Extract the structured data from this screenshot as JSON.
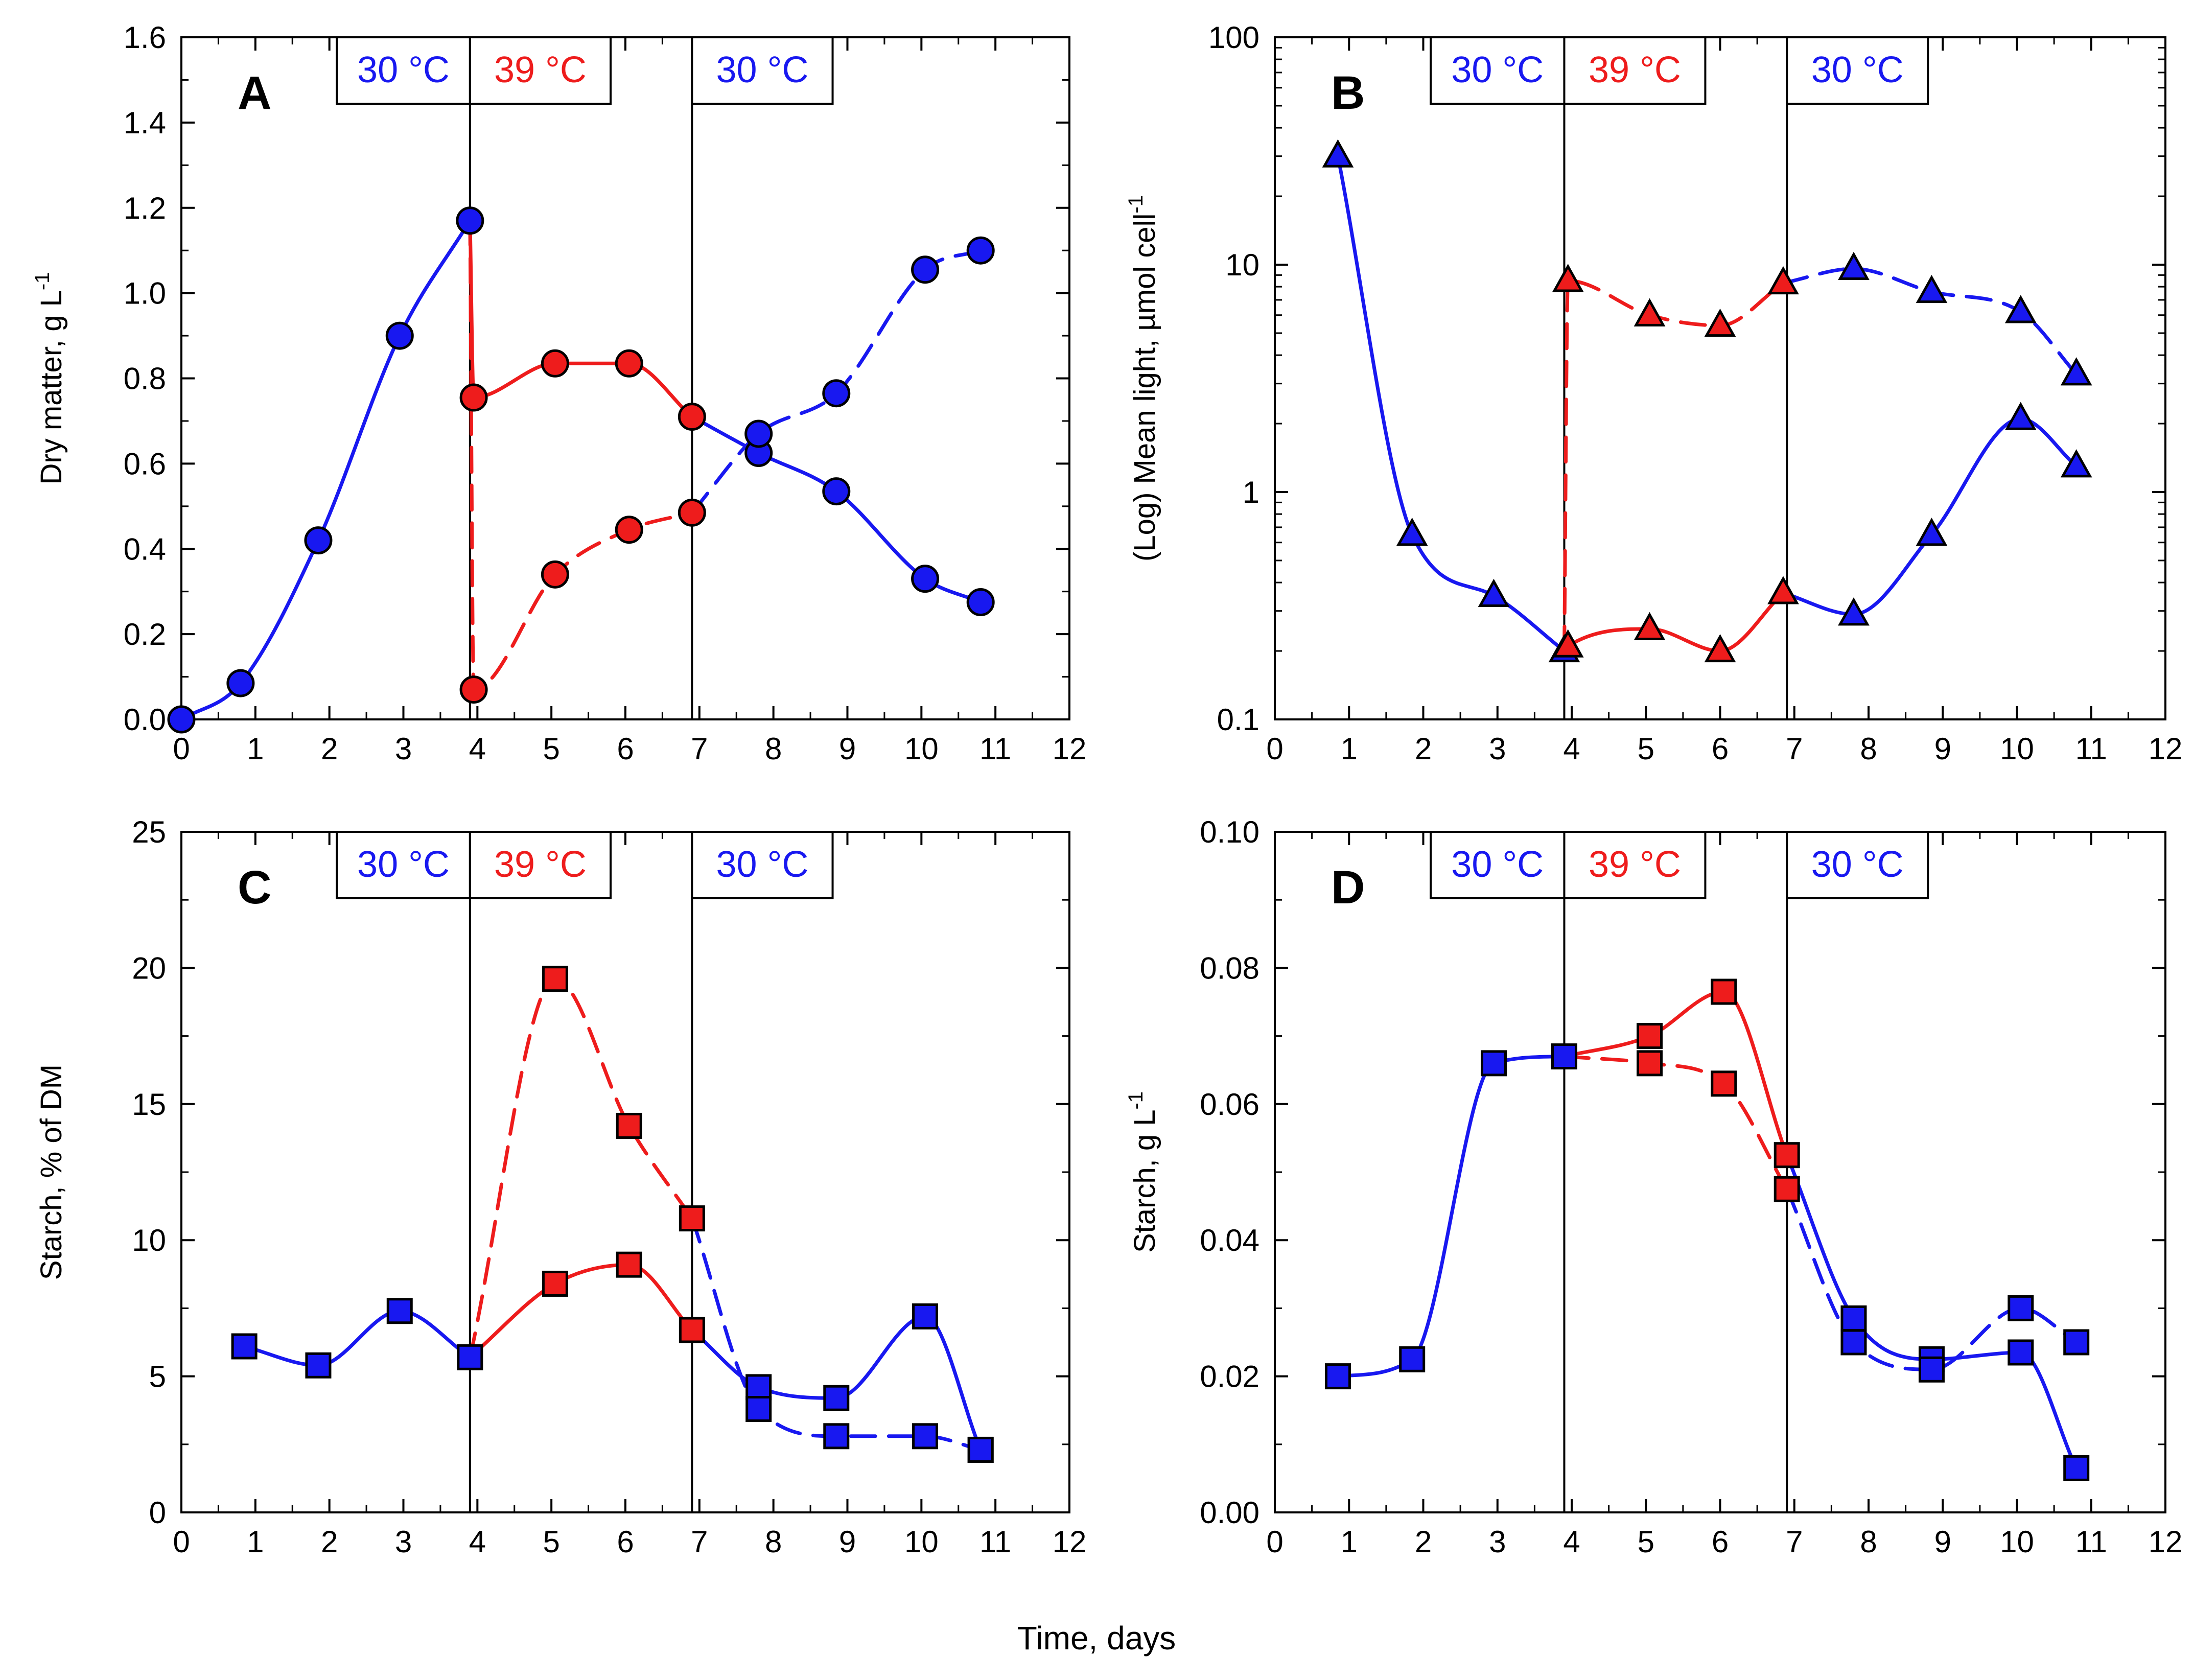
{
  "figure": {
    "xlabel": "Time, days"
  },
  "colors": {
    "blue": "#1818f0",
    "red": "#ee1c1c",
    "axis": "#000000",
    "bg": "#ffffff"
  },
  "chart_data": [
    {
      "id": "A",
      "type": "line",
      "panel_label": "A",
      "ylabel": "Dry matter, g L",
      "ylabel_sup": "-1",
      "xlim": [
        0,
        12
      ],
      "ylim": [
        0,
        1.6
      ],
      "yscale": "linear",
      "xticks": [
        0,
        1,
        2,
        3,
        4,
        5,
        6,
        7,
        8,
        9,
        10,
        11,
        12
      ],
      "xtick_labels": [
        "0",
        "1",
        "2",
        "3",
        "4",
        "5",
        "6",
        "7",
        "8",
        "9",
        "10",
        "11",
        "12"
      ],
      "yticks": [
        0,
        0.2,
        0.4,
        0.6,
        0.8,
        1.0,
        1.2,
        1.4,
        1.6
      ],
      "ytick_labels": [
        "0.0",
        "0.2",
        "0.4",
        "0.6",
        "0.8",
        "1.0",
        "1.2",
        "1.4",
        "1.6"
      ],
      "vlines": [
        3.9,
        6.9
      ],
      "temp_labels": [
        {
          "text": "30 °C",
          "color": "blue",
          "x0": 2.1,
          "x1": 3.9
        },
        {
          "text": "39 °C",
          "color": "red",
          "x0": 3.9,
          "x1": 5.8
        },
        {
          "text": "30 °C",
          "color": "blue",
          "x0": 6.9,
          "x1": 8.8
        }
      ],
      "series": [
        {
          "color": "blue",
          "dash": false,
          "marker": "circle",
          "x": [
            0,
            0.8,
            1.85,
            2.95,
            3.9
          ],
          "y": [
            0,
            0.085,
            0.42,
            0.9,
            1.17
          ]
        },
        {
          "color": "red",
          "dash": false,
          "marker": "circle",
          "x": [
            3.9,
            3.95,
            5.05,
            6.05,
            6.9
          ],
          "y": [
            1.17,
            0.755,
            0.835,
            0.835,
            0.71
          ]
        },
        {
          "color": "red",
          "dash": true,
          "marker": "circle",
          "x": [
            3.9,
            3.95,
            5.05,
            6.05,
            6.9
          ],
          "y": [
            1.17,
            0.07,
            0.34,
            0.445,
            0.485
          ]
        },
        {
          "color": "blue",
          "dash": false,
          "marker": "circle",
          "x": [
            6.9,
            7.8,
            8.85,
            10.05,
            10.8
          ],
          "y": [
            0.71,
            0.625,
            0.535,
            0.33,
            0.275
          ]
        },
        {
          "color": "blue",
          "dash": true,
          "marker": "circle",
          "x": [
            6.9,
            7.8,
            8.85,
            10.05,
            10.8
          ],
          "y": [
            0.485,
            0.67,
            0.765,
            1.055,
            1.1
          ]
        }
      ]
    },
    {
      "id": "B",
      "type": "line",
      "panel_label": "B",
      "ylabel": "(Log) Mean light, µmol cell",
      "ylabel_sup": "-1",
      "xlim": [
        0,
        12
      ],
      "ylim": [
        0.1,
        100
      ],
      "yscale": "log",
      "xticks": [
        0,
        1,
        2,
        3,
        4,
        5,
        6,
        7,
        8,
        9,
        10,
        11,
        12
      ],
      "xtick_labels": [
        "0",
        "1",
        "2",
        "3",
        "4",
        "5",
        "6",
        "7",
        "8",
        "9",
        "10",
        "11",
        "12"
      ],
      "yticks": [
        0.1,
        1,
        10,
        100
      ],
      "ytick_labels": [
        "0.1",
        "1",
        "10",
        "100"
      ],
      "vlines": [
        3.9,
        6.9
      ],
      "temp_labels": [
        {
          "text": "30 °C",
          "color": "blue",
          "x0": 2.1,
          "x1": 3.9
        },
        {
          "text": "39 °C",
          "color": "red",
          "x0": 3.9,
          "x1": 5.8
        },
        {
          "text": "30 °C",
          "color": "blue",
          "x0": 6.9,
          "x1": 8.8
        }
      ],
      "series": [
        {
          "color": "blue",
          "dash": false,
          "marker": "triangle",
          "x": [
            0.85,
            1.85,
            2.95,
            3.9
          ],
          "y": [
            30,
            0.65,
            0.35,
            0.2
          ]
        },
        {
          "color": "red",
          "dash": false,
          "marker": "triangle",
          "x": [
            3.9,
            3.95,
            5.05,
            6.0,
            6.85
          ],
          "y": [
            0.2,
            0.21,
            0.25,
            0.2,
            0.36
          ]
        },
        {
          "color": "red",
          "dash": true,
          "marker": "triangle",
          "x": [
            3.9,
            3.95,
            5.05,
            6.0,
            6.85
          ],
          "y": [
            0.2,
            8.5,
            6.0,
            5.4,
            8.3
          ]
        },
        {
          "color": "blue",
          "dash": false,
          "marker": "triangle",
          "x": [
            6.85,
            7.8,
            8.85,
            10.05,
            10.8
          ],
          "y": [
            0.36,
            0.29,
            0.65,
            2.1,
            1.3
          ]
        },
        {
          "color": "blue",
          "dash": true,
          "marker": "triangle",
          "x": [
            6.85,
            7.8,
            8.85,
            10.05,
            10.8
          ],
          "y": [
            8.3,
            9.6,
            7.6,
            6.2,
            3.3
          ]
        }
      ]
    },
    {
      "id": "C",
      "type": "line",
      "panel_label": "C",
      "ylabel": "Starch, % of DM",
      "ylabel_sup": "",
      "xlim": [
        0,
        12
      ],
      "ylim": [
        0,
        25
      ],
      "yscale": "linear",
      "xticks": [
        0,
        1,
        2,
        3,
        4,
        5,
        6,
        7,
        8,
        9,
        10,
        11,
        12
      ],
      "xtick_labels": [
        "0",
        "1",
        "2",
        "3",
        "4",
        "5",
        "6",
        "7",
        "8",
        "9",
        "10",
        "11",
        "12"
      ],
      "yticks": [
        0,
        5,
        10,
        15,
        20,
        25
      ],
      "ytick_labels": [
        "0",
        "5",
        "10",
        "15",
        "20",
        "25"
      ],
      "vlines": [
        3.9,
        6.9
      ],
      "temp_labels": [
        {
          "text": "30 °C",
          "color": "blue",
          "x0": 2.1,
          "x1": 3.9
        },
        {
          "text": "39 °C",
          "color": "red",
          "x0": 3.9,
          "x1": 5.8
        },
        {
          "text": "30 °C",
          "color": "blue",
          "x0": 6.9,
          "x1": 8.8
        }
      ],
      "series": [
        {
          "color": "blue",
          "dash": false,
          "marker": "square",
          "x": [
            0.85,
            1.85,
            2.95,
            3.9
          ],
          "y": [
            6.1,
            5.4,
            7.4,
            5.7
          ]
        },
        {
          "color": "red",
          "dash": false,
          "marker": "square",
          "x": [
            3.9,
            5.05,
            6.05,
            6.9
          ],
          "y": [
            5.7,
            8.4,
            9.1,
            6.7
          ]
        },
        {
          "color": "red",
          "dash": true,
          "marker": "square",
          "x": [
            3.9,
            5.05,
            6.05,
            6.9
          ],
          "y": [
            5.7,
            19.6,
            14.2,
            10.8
          ]
        },
        {
          "color": "blue",
          "dash": false,
          "marker": "square",
          "x": [
            6.9,
            7.8,
            8.85,
            10.05,
            10.8
          ],
          "y": [
            6.7,
            4.6,
            4.2,
            7.2,
            2.3
          ]
        },
        {
          "color": "blue",
          "dash": true,
          "marker": "square",
          "x": [
            6.9,
            7.8,
            8.85,
            10.05,
            10.8
          ],
          "y": [
            10.8,
            3.8,
            2.8,
            2.8,
            2.3
          ]
        }
      ]
    },
    {
      "id": "D",
      "type": "line",
      "panel_label": "D",
      "ylabel": "Starch, g L",
      "ylabel_sup": "-1",
      "xlim": [
        0,
        12
      ],
      "ylim": [
        0,
        0.1
      ],
      "yscale": "linear",
      "xticks": [
        0,
        1,
        2,
        3,
        4,
        5,
        6,
        7,
        8,
        9,
        10,
        11,
        12
      ],
      "xtick_labels": [
        "0",
        "1",
        "2",
        "3",
        "4",
        "5",
        "6",
        "7",
        "8",
        "9",
        "10",
        "11",
        "12"
      ],
      "yticks": [
        0,
        0.02,
        0.04,
        0.06,
        0.08,
        0.1
      ],
      "ytick_labels": [
        "0.00",
        "0.02",
        "0.04",
        "0.06",
        "0.08",
        "0.10"
      ],
      "vlines": [
        3.9,
        6.9
      ],
      "temp_labels": [
        {
          "text": "30 °C",
          "color": "blue",
          "x0": 2.1,
          "x1": 3.9
        },
        {
          "text": "39 °C",
          "color": "red",
          "x0": 3.9,
          "x1": 5.8
        },
        {
          "text": "30 °C",
          "color": "blue",
          "x0": 6.9,
          "x1": 8.8
        }
      ],
      "series": [
        {
          "color": "blue",
          "dash": false,
          "marker": "square",
          "x": [
            0.85,
            1.85,
            2.95,
            3.9
          ],
          "y": [
            0.02,
            0.0225,
            0.066,
            0.067
          ]
        },
        {
          "color": "red",
          "dash": false,
          "marker": "square",
          "x": [
            3.9,
            5.05,
            6.05,
            6.9
          ],
          "y": [
            0.067,
            0.07,
            0.0765,
            0.0525
          ]
        },
        {
          "color": "red",
          "dash": true,
          "marker": "square",
          "x": [
            3.9,
            5.05,
            6.05,
            6.9
          ],
          "y": [
            0.067,
            0.066,
            0.063,
            0.0475
          ]
        },
        {
          "color": "blue",
          "dash": false,
          "marker": "square",
          "x": [
            6.9,
            7.8,
            8.85,
            10.05,
            10.8
          ],
          "y": [
            0.0525,
            0.0285,
            0.0225,
            0.0235,
            0.0065
          ]
        },
        {
          "color": "blue",
          "dash": true,
          "marker": "square",
          "x": [
            6.9,
            7.8,
            8.85,
            10.05,
            10.8
          ],
          "y": [
            0.0475,
            0.025,
            0.021,
            0.03,
            0.025
          ]
        }
      ]
    }
  ]
}
